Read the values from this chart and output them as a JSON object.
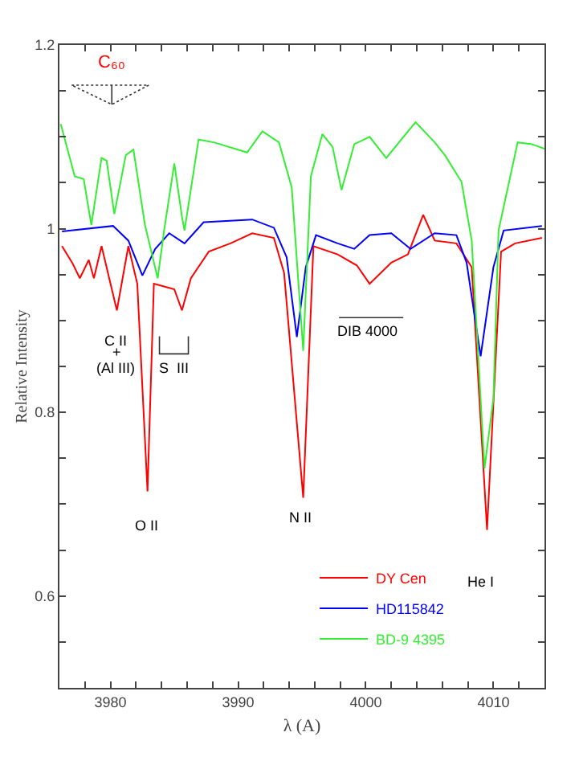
{
  "chart_data": {
    "type": "line",
    "xlabel": "λ (A)",
    "ylabel": "Relative Intensity",
    "xlim": [
      3976,
      4014
    ],
    "ylim": [
      0.5,
      1.2
    ],
    "xticks": [
      {
        "value": 3978,
        "label": null
      },
      3980,
      {
        "value": 3982,
        "label": null
      },
      {
        "value": 3984,
        "label": null
      },
      {
        "value": 3986,
        "label": null
      },
      {
        "value": 3988,
        "label": null
      },
      3990,
      {
        "value": 3992,
        "label": null
      },
      {
        "value": 3994,
        "label": null
      },
      {
        "value": 3996,
        "label": null
      },
      {
        "value": 3998,
        "label": null
      },
      4000,
      {
        "value": 4002,
        "label": null
      },
      {
        "value": 4004,
        "label": null
      },
      {
        "value": 4006,
        "label": null
      },
      {
        "value": 4008,
        "label": null
      },
      4010,
      {
        "value": 4012,
        "label": null
      }
    ],
    "yticks": [
      {
        "value": 0.55,
        "label": null
      },
      0.6,
      {
        "value": 0.65,
        "label": null
      },
      {
        "value": 0.7,
        "label": null
      },
      {
        "value": 0.75,
        "label": null
      },
      0.8,
      {
        "value": 0.85,
        "label": null
      },
      {
        "value": 0.9,
        "label": null
      },
      {
        "value": 0.95,
        "label": null
      },
      1,
      {
        "value": 1.05,
        "label": null
      },
      {
        "value": 1.1,
        "label": null
      },
      {
        "value": 1.15,
        "label": null
      },
      1.2
    ],
    "grid": false,
    "legend": "bottom",
    "marker": "none",
    "line_style": "solid",
    "series": [
      {
        "name": "DY Cen",
        "color": "#ff0000",
        "x": [
          3976.2,
          3977.0,
          3977.6,
          3978.3,
          3978.7,
          3979.3,
          3980.5,
          3981.4,
          3982.1,
          3982.9,
          3983.4,
          3984.2,
          3985.0,
          3985.6,
          3986.3,
          3987.7,
          3989.4,
          3991.1,
          3992.8,
          3993.6,
          3995.1,
          3995.9,
          3997.8,
          3999.3,
          4000.3,
          4002.0,
          4003.3,
          4004.5,
          4005.4,
          4007.1,
          4008.3,
          4009.5,
          4010.6,
          4011.7,
          4013.8
        ],
        "values": [
          0.981,
          0.963,
          0.946,
          0.966,
          0.946,
          0.981,
          0.911,
          0.981,
          0.94,
          0.714,
          0.94,
          0.937,
          0.934,
          0.911,
          0.946,
          0.975,
          0.984,
          0.995,
          0.99,
          0.952,
          0.707,
          0.981,
          0.972,
          0.96,
          0.94,
          0.963,
          0.972,
          1.015,
          0.987,
          0.984,
          0.958,
          0.672,
          0.975,
          0.984,
          0.99
        ]
      },
      {
        "name": "HD115842",
        "color": "#0000ff",
        "x": [
          3976.2,
          3980.2,
          3981.4,
          3982.5,
          3983.5,
          3984.6,
          3985.8,
          3987.3,
          3991.1,
          3992.8,
          3993.8,
          3994.6,
          3995.3,
          3996.1,
          3997.8,
          3999.1,
          4000.3,
          4002.0,
          4003.5,
          4005.4,
          4007.1,
          4007.9,
          4009.0,
          4010.0,
          4010.8,
          4013.8
        ],
        "values": [
          0.997,
          1.003,
          0.987,
          0.949,
          0.978,
          0.995,
          0.984,
          1.007,
          1.01,
          1.001,
          0.969,
          0.882,
          0.958,
          0.993,
          0.984,
          0.978,
          0.993,
          0.995,
          0.978,
          0.995,
          0.993,
          0.963,
          0.861,
          0.958,
          0.998,
          1.003
        ]
      },
      {
        "name": "BD-9 4395",
        "color": "#33ee33",
        "x": [
          3976.1,
          3977.2,
          3977.9,
          3978.5,
          3979.3,
          3979.7,
          3980.3,
          3981.2,
          3981.8,
          3982.7,
          3983.7,
          3984.2,
          3985.0,
          3985.6,
          3985.8,
          3986.9,
          3988.1,
          3990.7,
          3991.9,
          3993.2,
          3994.2,
          3995.1,
          3995.7,
          3996.6,
          3997.4,
          3998.1,
          3999.1,
          4000.3,
          4001.6,
          4003.9,
          4005.4,
          4006.2,
          4007.5,
          4008.3,
          4009.3,
          4010.0,
          4010.4,
          4011.9,
          4013.0,
          4014.0
        ],
        "values": [
          1.114,
          1.057,
          1.054,
          1.004,
          1.077,
          1.074,
          1.016,
          1.08,
          1.086,
          1.004,
          0.946,
          0.998,
          1.071,
          1.013,
          0.998,
          1.097,
          1.094,
          1.083,
          1.106,
          1.094,
          1.045,
          0.867,
          1.057,
          1.103,
          1.089,
          1.042,
          1.092,
          1.1,
          1.077,
          1.116,
          1.094,
          1.08,
          1.051,
          0.987,
          0.739,
          0.815,
          0.998,
          1.094,
          1.092,
          1.087
        ]
      }
    ],
    "annotations": [
      "C₆₀",
      "C II",
      "+",
      "(Al III)",
      "S  III",
      "O II",
      "N II",
      "DIB 4000",
      "He I"
    ]
  }
}
